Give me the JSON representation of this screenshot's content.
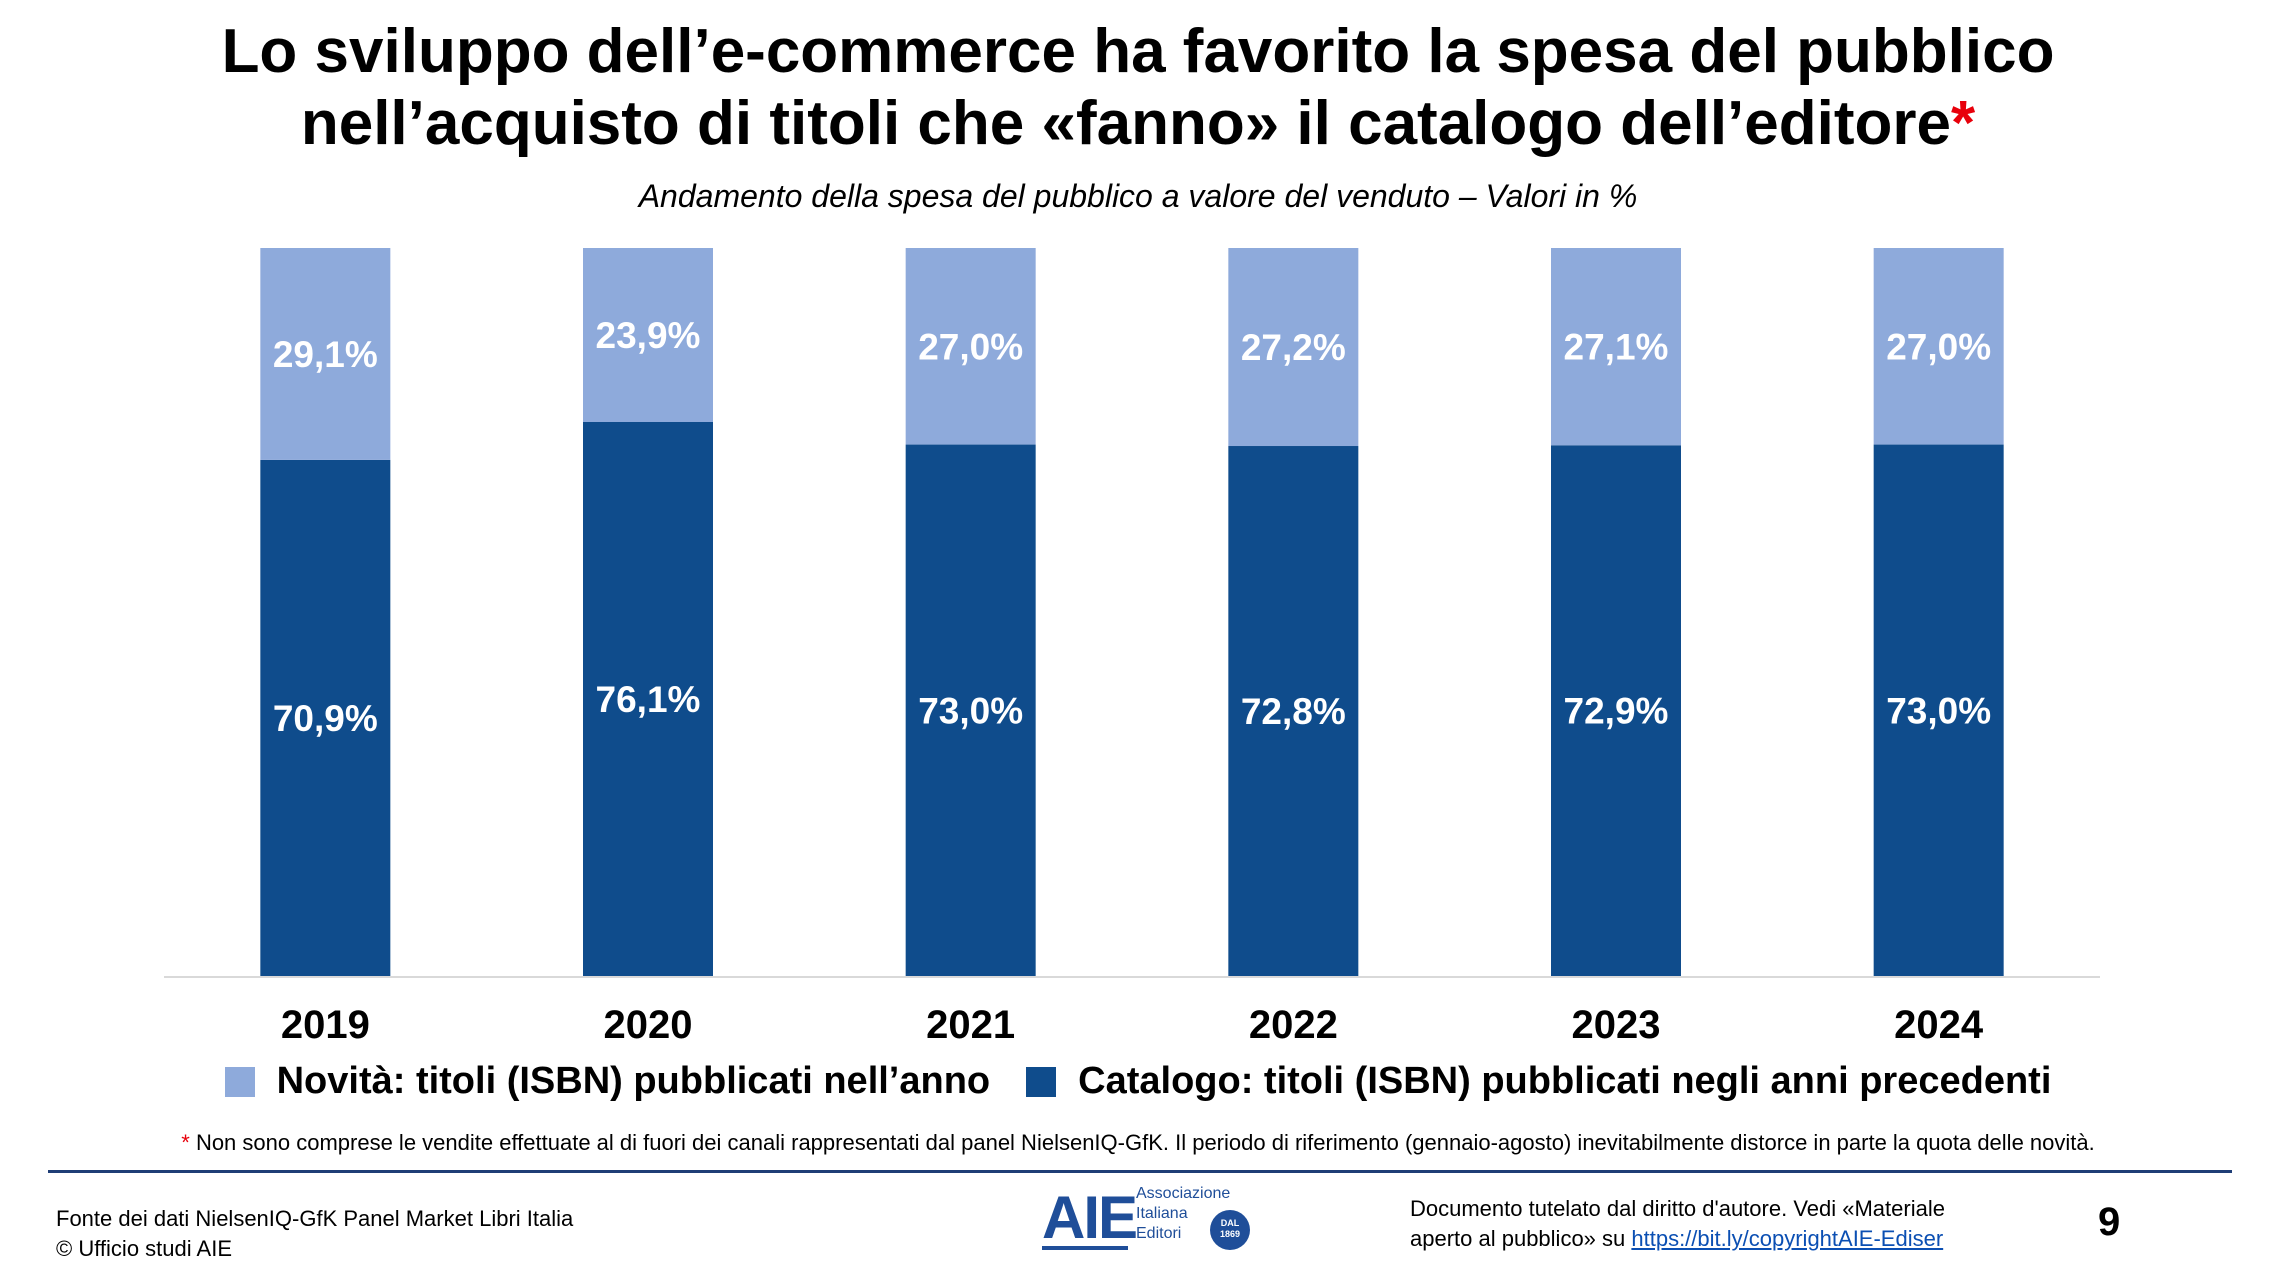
{
  "slide": {
    "title_line1": "Lo sviluppo dell’e-commerce ha favorito la spesa del pubblico",
    "title_line2": "nell’acquisto di titoli che «fanno» il catalogo dell’editore",
    "title_star": "*",
    "subtitle": "Andamento della spesa del pubblico a valore del venduto – Valori in %",
    "footnote_star": "*",
    "footnote": "Non sono comprese le vendite effettuate al di fuori dei canali rappresentati dal panel NielsenIQ-GfK. Il periodo di riferimento (gennaio-agosto) inevitabilmente distorce in parte la quota delle novità.",
    "source_line1": "Fonte dei dati NielsenIQ-GfK Panel Market Libri Italia",
    "source_line2": "© Ufficio studi AIE",
    "logo_text": "AIE",
    "logo_line1": "Associazione",
    "logo_line2": "Italiana",
    "logo_line3": "Editori",
    "logo_badge_top": "DAL",
    "logo_badge_year": "1869",
    "copyright_line1": "Documento tutelato dal diritto d'autore. Vedi «Materiale",
    "copyright_line2_prefix": "aperto al pubblico» su ",
    "copyright_link": "https://bit.ly/copyrightAIE-Ediser",
    "page_number": "9"
  },
  "colors": {
    "novita": "#8eaadb",
    "catalogo": "#0f4c8c",
    "label_text": "#ffffff",
    "axis": "#d9d9d9",
    "accent_red": "#e8000b"
  },
  "chart_data": {
    "type": "bar",
    "stacked": true,
    "categories": [
      "2019",
      "2020",
      "2021",
      "2022",
      "2023",
      "2024"
    ],
    "series": [
      {
        "name": "Catalogo: titoli (ISBN) pubblicati negli anni precedenti",
        "values": [
          70.9,
          76.1,
          73.0,
          72.8,
          72.9,
          73.0
        ],
        "labels": [
          "70,9%",
          "76,1%",
          "73,0%",
          "72,8%",
          "72,9%",
          "73,0%"
        ],
        "color": "#0f4c8c"
      },
      {
        "name": "Novità: titoli (ISBN) pubblicati nell’anno",
        "values": [
          29.1,
          23.9,
          27.0,
          27.2,
          27.1,
          27.0
        ],
        "labels": [
          "29,1%",
          "23,9%",
          "27,0%",
          "27,2%",
          "27,1%",
          "27,0%"
        ],
        "color": "#8eaadb"
      }
    ],
    "ylim": [
      0,
      100
    ],
    "grid": false,
    "legend_position": "bottom",
    "legend_order": [
      1,
      0
    ]
  }
}
